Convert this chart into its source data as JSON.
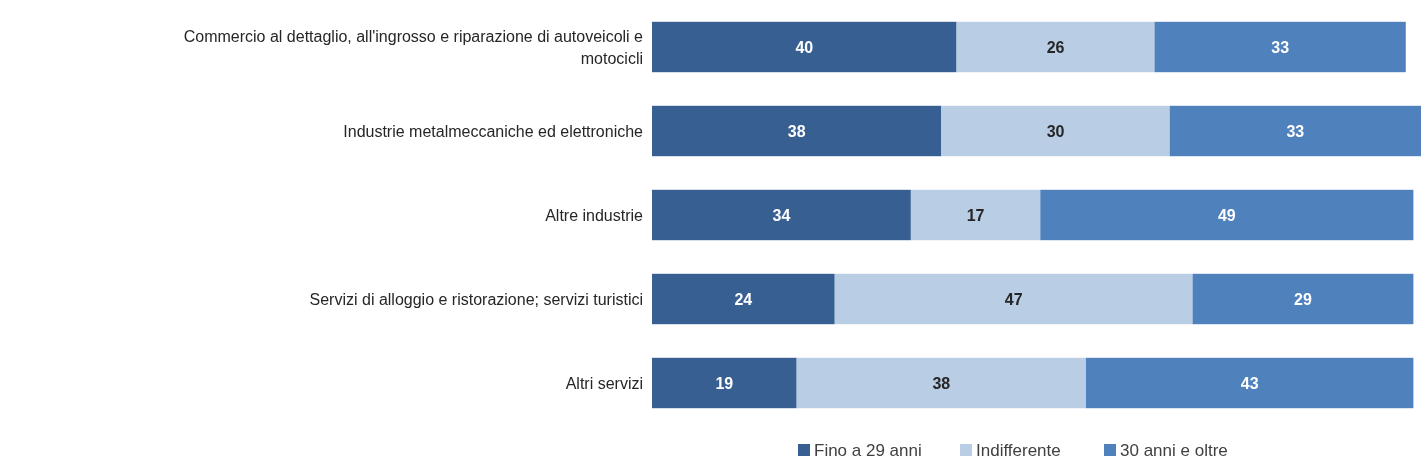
{
  "chart_data": {
    "type": "bar",
    "orientation": "horizontal",
    "stacked": true,
    "data_labels": true,
    "legend": "bottom",
    "categories": [
      "Commercio al dettaglio, all'ingrosso e riparazione di autoveicoli e motocicli",
      "Industrie metalmeccaniche ed elettroniche",
      "Altre industrie",
      "Servizi di alloggio e ristorazione; servizi turistici",
      "Altri servizi"
    ],
    "series": [
      {
        "name": "Fino a 29 anni",
        "color": "#375f92",
        "values": [
          40,
          38,
          34,
          24,
          19
        ]
      },
      {
        "name": "Indifferente",
        "color": "#b9cde4",
        "values": [
          26,
          30,
          17,
          47,
          38
        ]
      },
      {
        "name": "30 anni e oltre",
        "color": "#4f81bd",
        "values": [
          33,
          33,
          49,
          29,
          43
        ]
      }
    ]
  }
}
